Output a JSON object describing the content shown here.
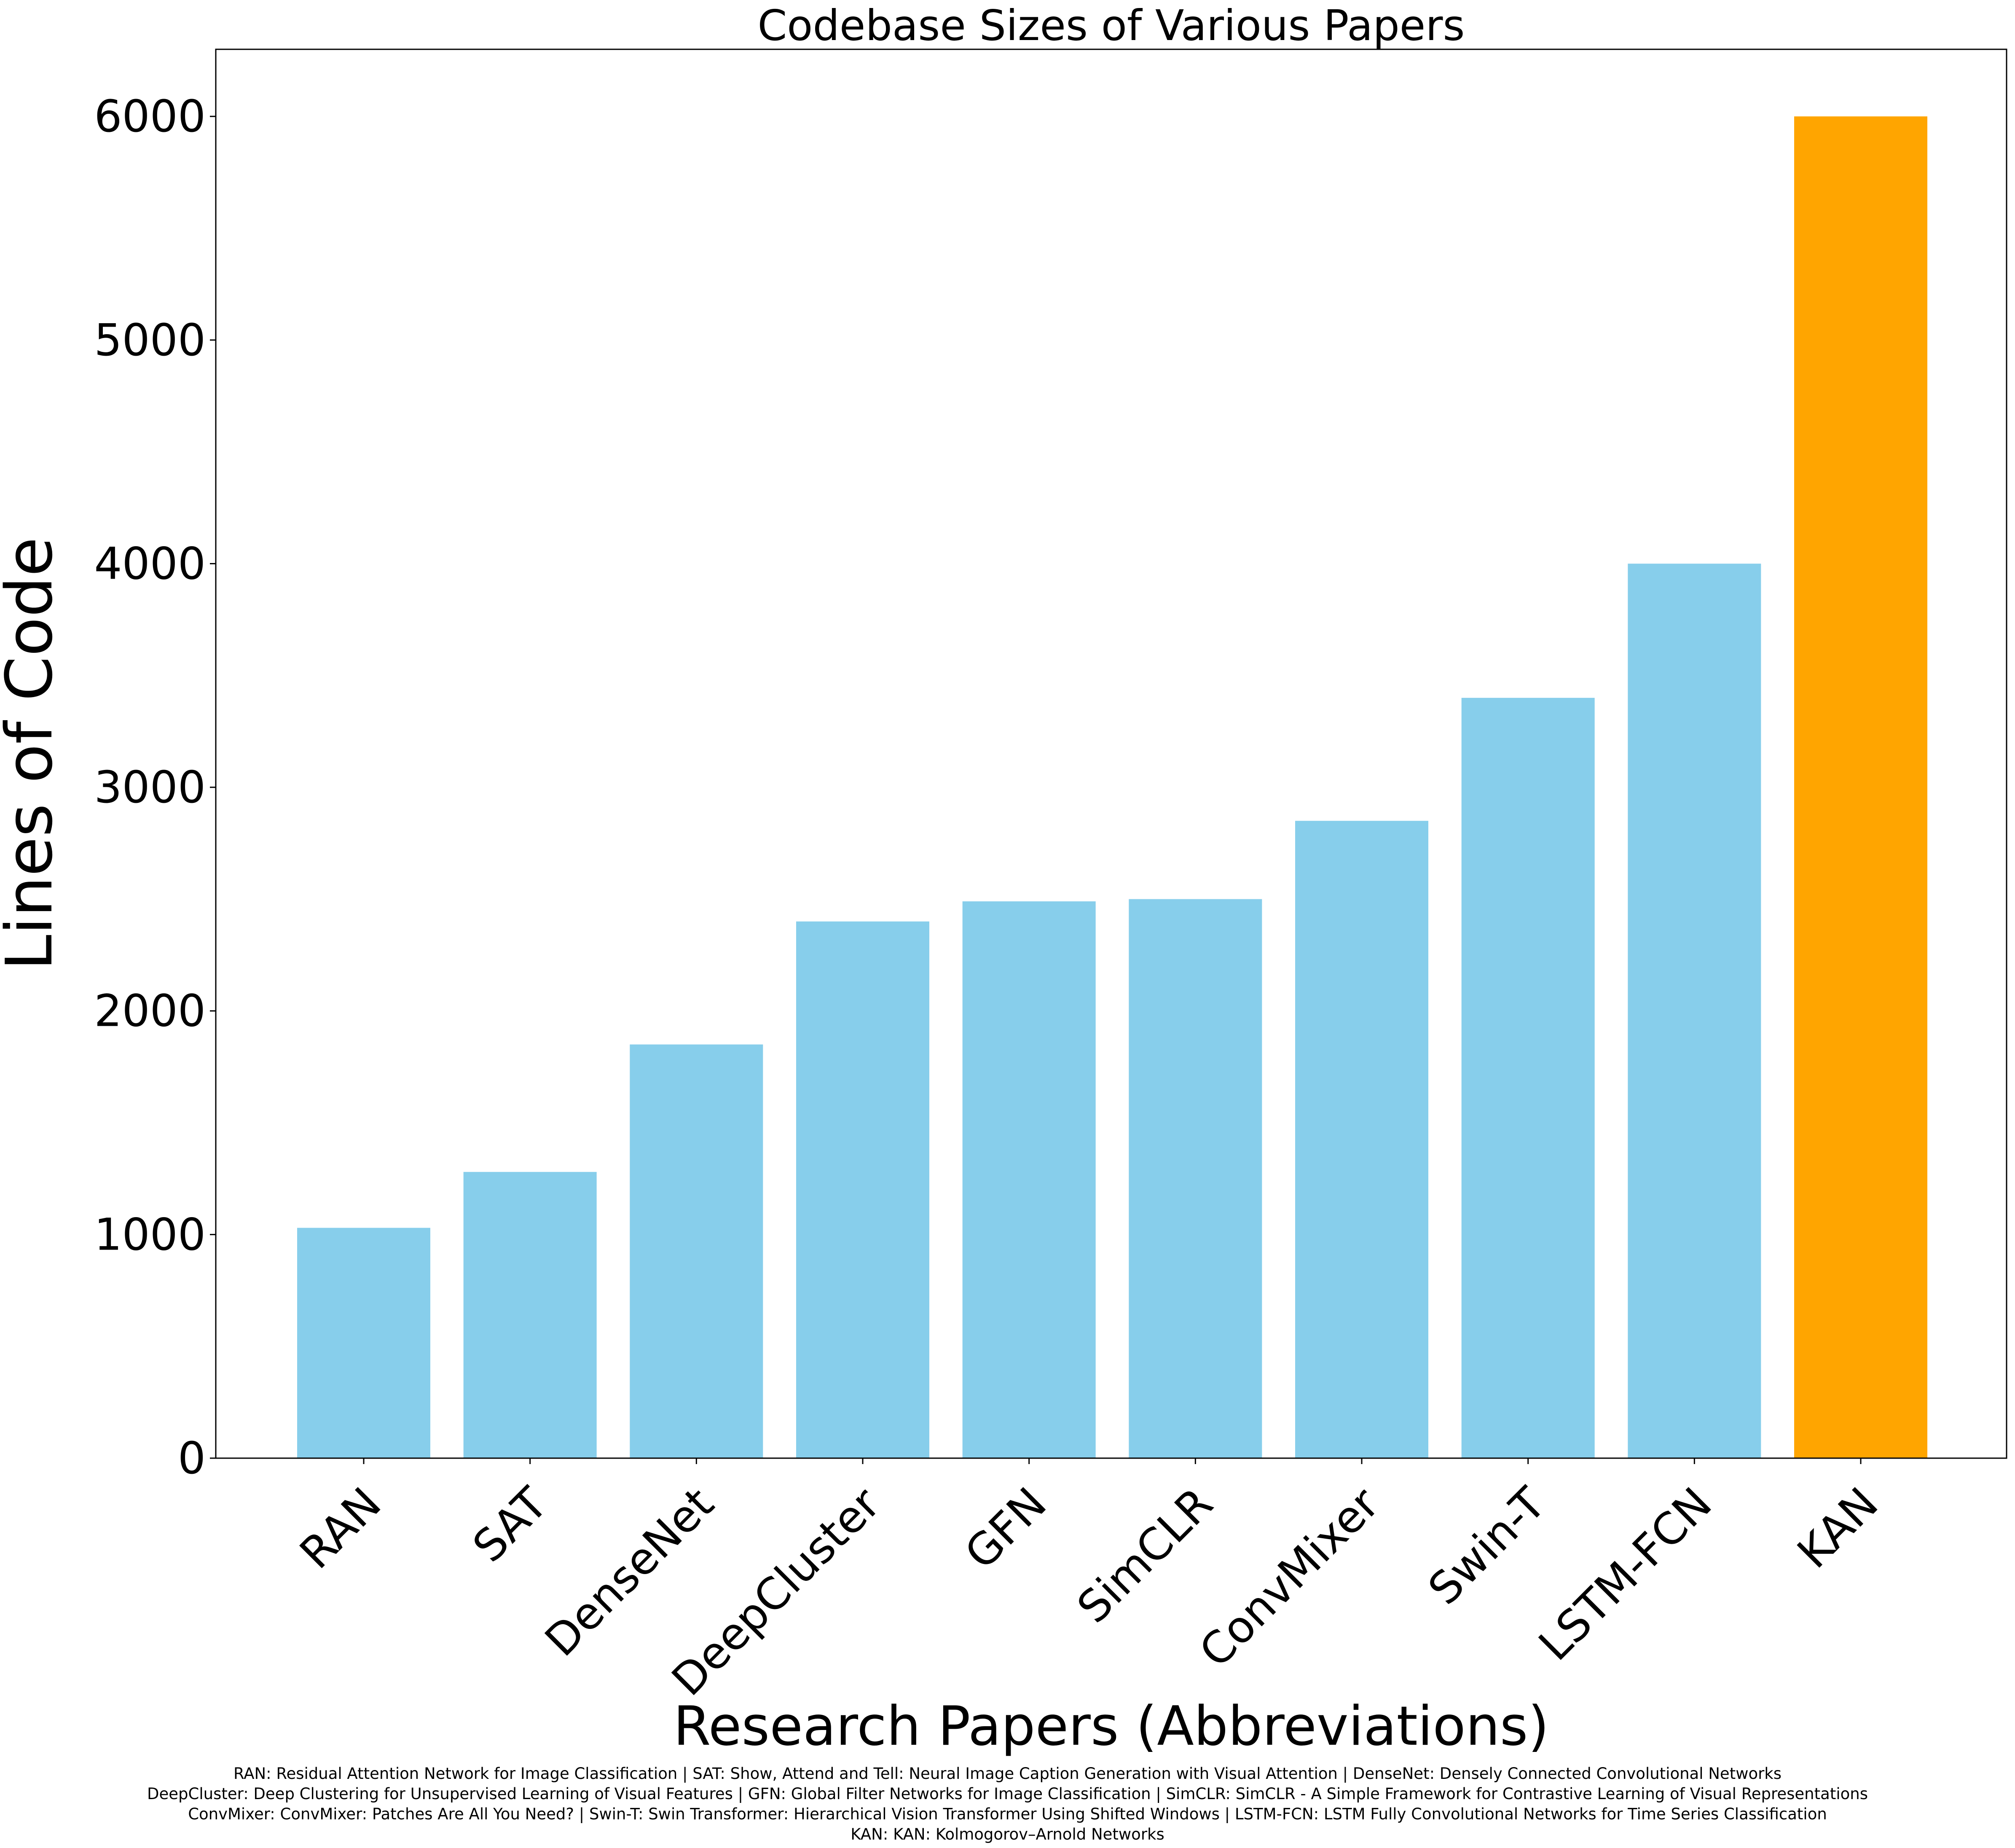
{
  "chart_data": {
    "type": "bar",
    "title": "Codebase Sizes of Various Papers",
    "xlabel": "Research Papers (Abbreviations)",
    "ylabel": "Lines of Code",
    "categories": [
      "RAN",
      "SAT",
      "DenseNet",
      "DeepCluster",
      "GFN",
      "SimCLR",
      "ConvMixer",
      "Swin-T",
      "LSTM-FCN",
      "KAN"
    ],
    "values": [
      1030,
      1280,
      1850,
      2400,
      2490,
      2500,
      2850,
      3400,
      4000,
      6000
    ],
    "bar_colors": [
      "#87ceeb",
      "#87ceeb",
      "#87ceeb",
      "#87ceeb",
      "#87ceeb",
      "#87ceeb",
      "#87ceeb",
      "#87ceeb",
      "#87ceeb",
      "#ffa500"
    ],
    "ylim": [
      0,
      6300
    ],
    "yticks": [
      0,
      1000,
      2000,
      3000,
      4000,
      5000,
      6000
    ],
    "grid": false,
    "legend": "none"
  },
  "footnote": {
    "lines": [
      "RAN: Residual Attention Network for Image Classification  |  SAT: Show, Attend and Tell: Neural Image Caption Generation with Visual Attention  |  DenseNet: Densely Connected Convolutional Networks",
      "DeepCluster: Deep Clustering for Unsupervised Learning of Visual Features  |  GFN: Global Filter Networks for Image Classification  |  SimCLR: SimCLR - A Simple Framework for Contrastive Learning of Visual Representations",
      "ConvMixer: ConvMixer: Patches Are All You Need?  |  Swin-T: Swin Transformer: Hierarchical Vision Transformer Using Shifted Windows  |  LSTM-FCN: LSTM Fully Convolutional Networks for Time Series Classification",
      "KAN: KAN: Kolmogorov–Arnold Networks"
    ]
  }
}
